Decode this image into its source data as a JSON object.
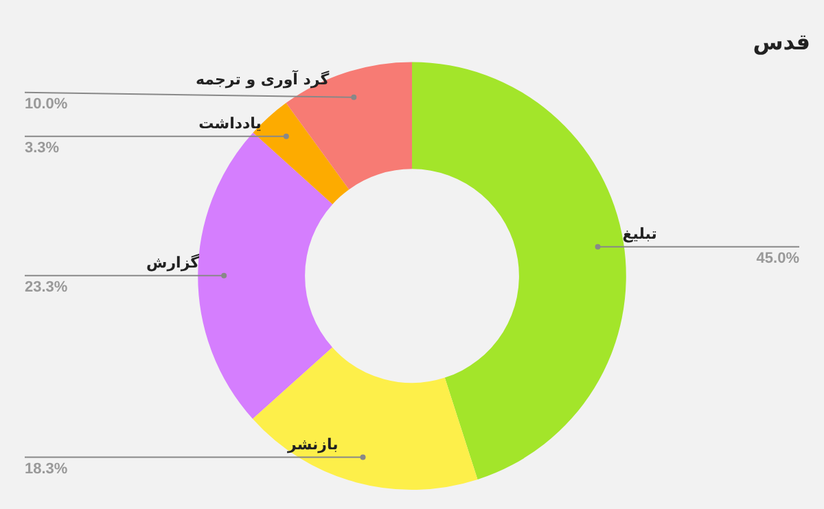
{
  "chart_data": {
    "type": "donut",
    "title": "قدس",
    "categories": [
      "تبلیغ",
      "بازنشر",
      "گزارش",
      "یادداشت",
      "گرد آوری و ترجمه"
    ],
    "values": [
      45.0,
      18.3,
      23.3,
      3.3,
      10.0
    ],
    "value_labels": [
      "45.0%",
      "18.3%",
      "23.3%",
      "3.3%",
      "10.0%"
    ],
    "colors": [
      "#a3e52a",
      "#fdef4a",
      "#d57efe",
      "#fdab00",
      "#f77b74"
    ]
  }
}
